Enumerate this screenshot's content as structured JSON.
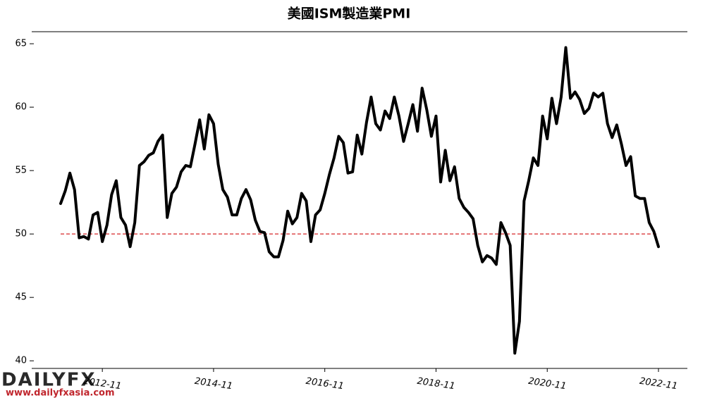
{
  "chart_data": {
    "type": "line",
    "title": "美國ISM製造業PMI",
    "x": [
      "2012-02",
      "2012-03",
      "2012-04",
      "2012-05",
      "2012-06",
      "2012-07",
      "2012-08",
      "2012-09",
      "2012-10",
      "2012-11",
      "2012-12",
      "2013-01",
      "2013-02",
      "2013-03",
      "2013-04",
      "2013-05",
      "2013-06",
      "2013-07",
      "2013-08",
      "2013-09",
      "2013-10",
      "2013-11",
      "2013-12",
      "2014-01",
      "2014-02",
      "2014-03",
      "2014-04",
      "2014-05",
      "2014-06",
      "2014-07",
      "2014-08",
      "2014-09",
      "2014-10",
      "2014-11",
      "2014-12",
      "2015-01",
      "2015-02",
      "2015-03",
      "2015-04",
      "2015-05",
      "2015-06",
      "2015-07",
      "2015-08",
      "2015-09",
      "2015-10",
      "2015-11",
      "2015-12",
      "2016-01",
      "2016-02",
      "2016-03",
      "2016-04",
      "2016-05",
      "2016-06",
      "2016-07",
      "2016-08",
      "2016-09",
      "2016-10",
      "2016-11",
      "2016-12",
      "2017-01",
      "2017-02",
      "2017-03",
      "2017-04",
      "2017-05",
      "2017-06",
      "2017-07",
      "2017-08",
      "2017-09",
      "2017-10",
      "2017-11",
      "2017-12",
      "2018-01",
      "2018-02",
      "2018-03",
      "2018-04",
      "2018-05",
      "2018-06",
      "2018-07",
      "2018-08",
      "2018-09",
      "2018-10",
      "2018-11",
      "2018-12",
      "2019-01",
      "2019-02",
      "2019-03",
      "2019-04",
      "2019-05",
      "2019-06",
      "2019-07",
      "2019-08",
      "2019-09",
      "2019-10",
      "2019-11",
      "2019-12",
      "2020-01",
      "2020-02",
      "2020-03",
      "2020-04",
      "2020-05",
      "2020-06",
      "2020-07",
      "2020-08",
      "2020-09",
      "2020-10",
      "2020-11",
      "2020-12",
      "2021-01",
      "2021-02",
      "2021-03",
      "2021-04",
      "2021-05",
      "2021-06",
      "2021-07",
      "2021-08",
      "2021-09",
      "2021-10",
      "2021-11",
      "2021-12",
      "2022-01",
      "2022-02",
      "2022-03",
      "2022-04",
      "2022-05",
      "2022-06",
      "2022-07",
      "2022-08",
      "2022-09",
      "2022-10",
      "2022-11"
    ],
    "series": [
      {
        "name": "ISM PMI",
        "color": "#000000",
        "values": [
          52.4,
          53.4,
          54.8,
          53.5,
          49.7,
          49.8,
          49.6,
          51.5,
          51.7,
          49.4,
          50.7,
          53.1,
          54.2,
          51.3,
          50.7,
          49.0,
          50.9,
          55.4,
          55.7,
          56.2,
          56.4,
          57.3,
          57.8,
          51.3,
          53.2,
          53.7,
          54.9,
          55.4,
          55.3,
          57.1,
          59.0,
          56.7,
          59.4,
          58.7,
          55.5,
          53.5,
          52.9,
          51.5,
          51.5,
          52.8,
          53.5,
          52.7,
          51.1,
          50.2,
          50.1,
          48.6,
          48.2,
          48.2,
          49.5,
          51.8,
          50.8,
          51.3,
          53.2,
          52.6,
          49.4,
          51.5,
          51.9,
          53.2,
          54.7,
          56.0,
          57.7,
          57.2,
          54.8,
          54.9,
          57.8,
          56.3,
          58.8,
          60.8,
          58.7,
          58.2,
          59.7,
          59.1,
          60.8,
          59.3,
          57.3,
          58.7,
          60.2,
          58.1,
          61.5,
          59.8,
          57.7,
          59.3,
          54.1,
          56.6,
          54.2,
          55.3,
          52.8,
          52.1,
          51.7,
          51.2,
          49.1,
          47.8,
          48.3,
          48.1,
          47.6,
          50.9,
          50.1,
          49.1,
          40.6,
          43.1,
          52.6,
          54.2,
          56.0,
          55.4,
          59.3,
          57.5,
          60.7,
          58.7,
          60.8,
          64.7,
          60.7,
          61.2,
          60.6,
          59.5,
          59.9,
          61.1,
          60.8,
          61.1,
          58.7,
          57.6,
          58.6,
          57.1,
          55.4,
          56.1,
          53.0,
          52.8,
          52.8,
          50.9,
          50.2,
          49.0
        ]
      }
    ],
    "xticks": [
      "2012-11",
      "2014-11",
      "2016-11",
      "2018-11",
      "2020-11",
      "2022-11"
    ],
    "ylim": [
      39.4,
      65.95
    ],
    "yticks": [
      40,
      45,
      50,
      55,
      60,
      65
    ],
    "reference_line": {
      "value": 50,
      "color": "#d62728"
    },
    "watermark": {
      "logo": "DAILYFX",
      "url": "www.dailyfxasia.com"
    }
  }
}
